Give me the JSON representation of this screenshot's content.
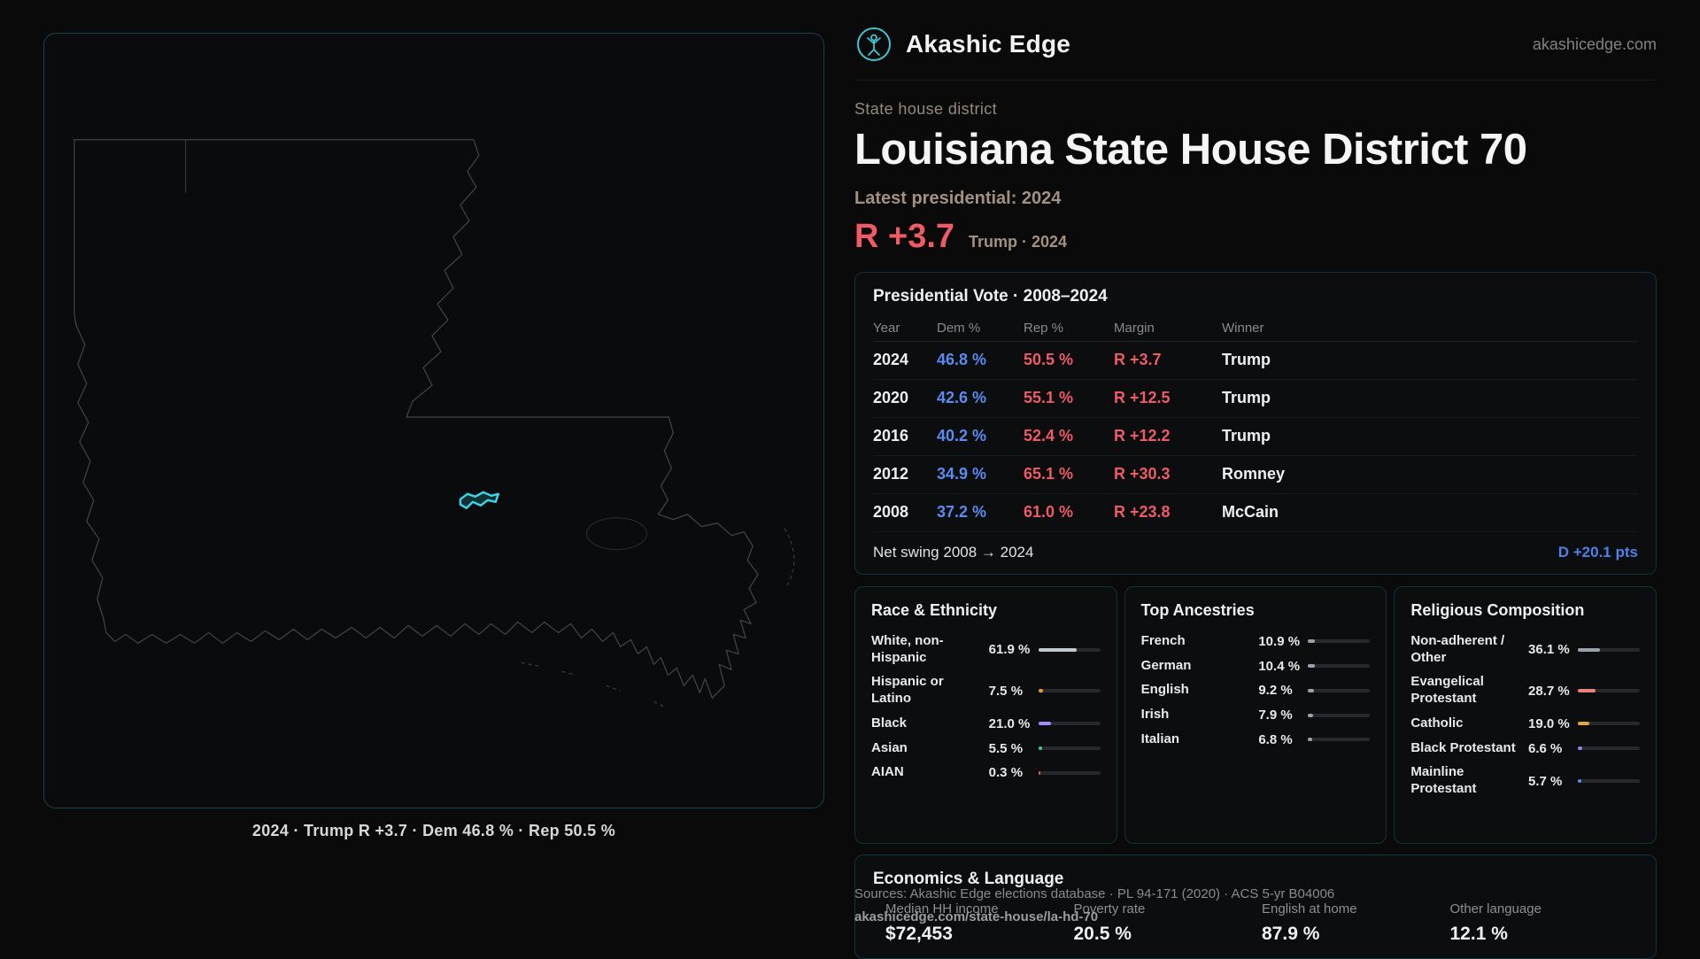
{
  "site": {
    "brand": "Akashic Edge",
    "domain": "akashicedge.com"
  },
  "map": {
    "caption": "2024 · Trump R +3.7 · Dem 46.8 % · Rep 50.5 %"
  },
  "header": {
    "eyebrow": "State house district",
    "title": "Louisiana State House District 70",
    "latest_label": "Latest presidential: 2024",
    "margin_value": "R +3.7",
    "margin_detail": "Trump · 2024"
  },
  "colors": {
    "dem_blue": "#5b8bf0",
    "rep_red": "#ee5a66",
    "accent_cyan": "#3ad8ea"
  },
  "vote_table": {
    "title": "Presidential Vote · 2008–2024",
    "columns": {
      "year": "Year",
      "dem": "Dem %",
      "rep": "Rep %",
      "margin": "Margin",
      "winner": "Winner"
    },
    "rows": [
      {
        "year": "2024",
        "dem": "46.8 %",
        "rep": "50.5 %",
        "margin": "R +3.7",
        "winner": "Trump"
      },
      {
        "year": "2020",
        "dem": "42.6 %",
        "rep": "55.1 %",
        "margin": "R +12.5",
        "winner": "Trump"
      },
      {
        "year": "2016",
        "dem": "40.2 %",
        "rep": "52.4 %",
        "margin": "R +12.2",
        "winner": "Trump"
      },
      {
        "year": "2012",
        "dem": "34.9 %",
        "rep": "65.1 %",
        "margin": "R +30.3",
        "winner": "Romney"
      },
      {
        "year": "2008",
        "dem": "37.2 %",
        "rep": "61.0 %",
        "margin": "R +23.8",
        "winner": "McCain"
      }
    ],
    "net_swing_label": "Net swing 2008 → 2024",
    "net_swing_value": "D +20.1 pts"
  },
  "demographics": [
    {
      "title": "Race & Ethnicity",
      "rows": [
        {
          "label": "White, non-Hispanic",
          "value": "61.9 %",
          "pct": 61.9,
          "color": "#c3c8d0"
        },
        {
          "label": "Hispanic or Latino",
          "value": "7.5 %",
          "pct": 7.5,
          "color": "#e09b3d"
        },
        {
          "label": "Black",
          "value": "21.0 %",
          "pct": 21.0,
          "color": "#a78bfa"
        },
        {
          "label": "Asian",
          "value": "5.5 %",
          "pct": 5.5,
          "color": "#3ecf8e"
        },
        {
          "label": "AIAN",
          "value": "0.3 %",
          "pct": 0.3,
          "color": "#e05a5a"
        }
      ]
    },
    {
      "title": "Top Ancestries",
      "rows": [
        {
          "label": "French",
          "value": "10.9 %",
          "pct": 10.9,
          "color": "#9aa1ab"
        },
        {
          "label": "German",
          "value": "10.4 %",
          "pct": 10.4,
          "color": "#9aa1ab"
        },
        {
          "label": "English",
          "value": "9.2 %",
          "pct": 9.2,
          "color": "#9aa1ab"
        },
        {
          "label": "Irish",
          "value": "7.9 %",
          "pct": 7.9,
          "color": "#9aa1ab"
        },
        {
          "label": "Italian",
          "value": "6.8 %",
          "pct": 6.8,
          "color": "#9aa1ab"
        }
      ]
    },
    {
      "title": "Religious Composition",
      "rows": [
        {
          "label": "Non-adherent / Other",
          "value": "36.1 %",
          "pct": 36.1,
          "color": "#9aa1ab"
        },
        {
          "label": "Evangelical Protestant",
          "value": "28.7 %",
          "pct": 28.7,
          "color": "#e8837d"
        },
        {
          "label": "Catholic",
          "value": "19.0 %",
          "pct": 19.0,
          "color": "#e0a63d"
        },
        {
          "label": "Black Protestant",
          "value": "6.6 %",
          "pct": 6.6,
          "color": "#8b85f2"
        },
        {
          "label": "Mainline Protestant",
          "value": "5.7 %",
          "pct": 5.7,
          "color": "#5b8bf0"
        }
      ]
    }
  ],
  "economics": {
    "title": "Economics & Language",
    "stats": [
      {
        "label": "Median HH income",
        "value": "$72,453"
      },
      {
        "label": "Poverty rate",
        "value": "20.5 %"
      },
      {
        "label": "English at home",
        "value": "87.9 %"
      },
      {
        "label": "Other language",
        "value": "12.1 %"
      }
    ]
  },
  "footer": {
    "sources": "Sources: Akashic Edge elections database · PL 94-171 (2020) · ACS 5-yr B04006",
    "permalink": "akashicedge.com/state-house/la-hd-70"
  }
}
